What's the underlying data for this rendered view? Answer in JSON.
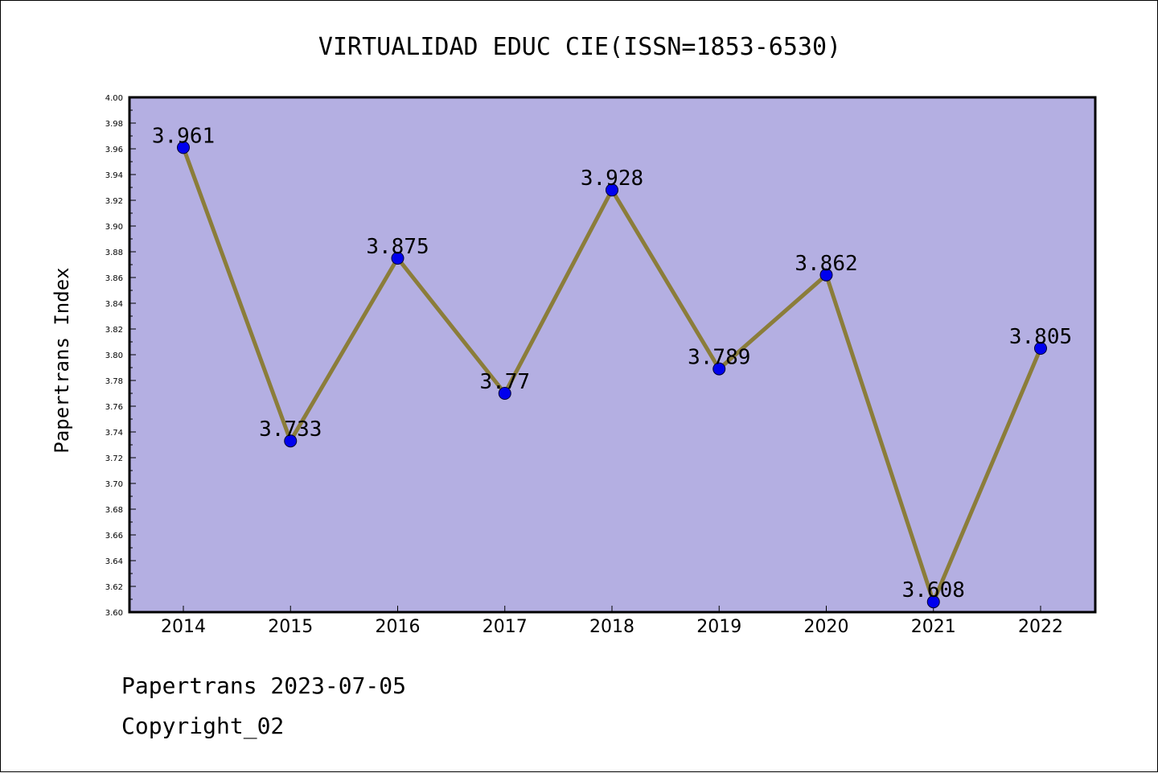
{
  "chart_data": {
    "type": "line",
    "title": "VIRTUALIDAD EDUC CIE(ISSN=1853-6530)",
    "xlabel": "",
    "ylabel": "Papertrans Index",
    "categories": [
      "2014",
      "2015",
      "2016",
      "2017",
      "2018",
      "2019",
      "2020",
      "2021",
      "2022"
    ],
    "values": [
      3.961,
      3.733,
      3.875,
      3.77,
      3.928,
      3.789,
      3.862,
      3.608,
      3.805
    ],
    "data_labels": [
      "3.961",
      "3.733",
      "3.875",
      "3.77",
      "3.928",
      "3.789",
      "3.862",
      "3.608",
      "3.805"
    ],
    "ylim": [
      3.6,
      4.0
    ],
    "ytick_step": 0.02,
    "ytick_labels": [
      "3.60",
      "3.62",
      "3.64",
      "3.66",
      "3.68",
      "3.70",
      "3.72",
      "3.74",
      "3.76",
      "3.78",
      "3.80",
      "3.82",
      "3.84",
      "3.86",
      "3.88",
      "3.90",
      "3.92",
      "3.94",
      "3.96",
      "3.98",
      "4.00"
    ],
    "grid": false,
    "legend": "none",
    "colors": {
      "plot_background": "#b4afe2",
      "line": "#8b7d3a",
      "marker": "#0000ee"
    }
  },
  "footer": {
    "date_line": "Papertrans 2023-07-05",
    "copyright_line": "Copyright_02"
  }
}
